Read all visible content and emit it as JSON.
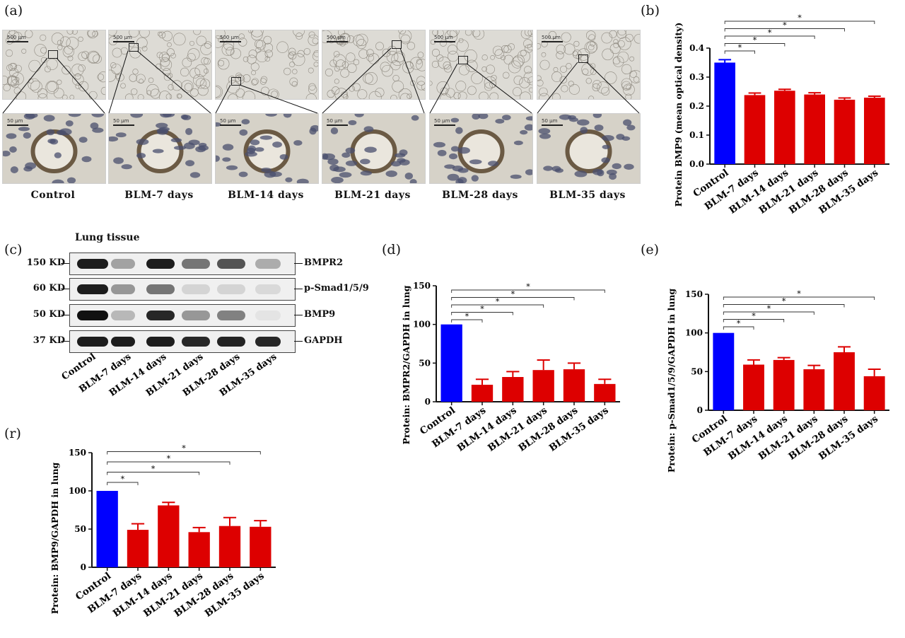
{
  "panel_a": {
    "label": "(a)",
    "scale_top": "500 μm",
    "scale_bottom": "50 μm",
    "groups": [
      "Control",
      "BLM-7 days",
      "BLM-14 days",
      "BLM-21 days",
      "BLM-28 days",
      "BLM-35 days"
    ]
  },
  "panel_c": {
    "label": "(c)",
    "tissue_title": "Lung tissue",
    "rows": [
      {
        "kd": "150 KD",
        "name": "BMPR2",
        "intensity": [
          0.95,
          0.35,
          0.95,
          0.55,
          0.7,
          0.3
        ]
      },
      {
        "kd": "60 KD",
        "name": "p-Smad1/5/9",
        "intensity": [
          0.95,
          0.4,
          0.55,
          0.12,
          0.12,
          0.1
        ]
      },
      {
        "kd": "50 KD",
        "name": "BMP9",
        "intensity": [
          1.0,
          0.25,
          0.9,
          0.4,
          0.5,
          0.05
        ]
      },
      {
        "kd": "37 KD",
        "name": "GAPDH",
        "intensity": [
          0.95,
          0.95,
          0.95,
          0.9,
          0.92,
          0.9
        ]
      }
    ],
    "categories": [
      "Control",
      "BLM-7 days",
      "BLM-14 days",
      "BLM-21 days",
      "BLM-28 days",
      "BLM-35 days"
    ]
  },
  "chart_data": [
    {
      "id": "b",
      "label": "(b)",
      "type": "bar",
      "categories": [
        "Control",
        "BLM-7 days",
        "BLM-14 days",
        "BLM-21 days",
        "BLM-28 days",
        "BLM-35 days"
      ],
      "values": [
        0.35,
        0.238,
        0.253,
        0.24,
        0.222,
        0.229
      ],
      "errors": [
        0.01,
        0.007,
        0.005,
        0.006,
        0.006,
        0.005
      ],
      "ylabel": "Protein BMP9 (mean optical density)",
      "ylim": [
        0,
        0.4
      ],
      "yticks": [
        0.0,
        0.1,
        0.2,
        0.3,
        0.4
      ],
      "ytick_labels": [
        "0.0",
        "0.1",
        "0.2",
        "0.3",
        "0.4"
      ],
      "colors": [
        "#0000ff",
        "#dd0000",
        "#dd0000",
        "#dd0000",
        "#dd0000",
        "#dd0000"
      ],
      "significance": [
        [
          0,
          1
        ],
        [
          0,
          2
        ],
        [
          0,
          3
        ],
        [
          0,
          4
        ],
        [
          0,
          5
        ]
      ],
      "sig_symbol": "*"
    },
    {
      "id": "d",
      "label": "(d)",
      "type": "bar",
      "categories": [
        "Control",
        "BLM-7 days",
        "BLM-14 days",
        "BLM-21 days",
        "BLM-28 days",
        "BLM-35 days"
      ],
      "values": [
        100,
        22,
        32,
        41,
        42,
        23
      ],
      "errors": [
        0,
        7,
        7,
        13,
        8,
        6
      ],
      "ylabel": "Protein: BMPR2/GAPDH in lung",
      "ylim": [
        0,
        150
      ],
      "yticks": [
        0,
        50,
        100,
        150
      ],
      "ytick_labels": [
        "0",
        "50",
        "100",
        "150"
      ],
      "colors": [
        "#0000ff",
        "#dd0000",
        "#dd0000",
        "#dd0000",
        "#dd0000",
        "#dd0000"
      ],
      "significance": [
        [
          0,
          1
        ],
        [
          0,
          2
        ],
        [
          0,
          3
        ],
        [
          0,
          4
        ],
        [
          0,
          5
        ]
      ],
      "sig_symbol": "*"
    },
    {
      "id": "e",
      "label": "(e)",
      "type": "bar",
      "categories": [
        "Control",
        "BLM-7 days",
        "BLM-14 days",
        "BLM-21 days",
        "BLM-28 days",
        "BLM-35 days"
      ],
      "values": [
        100,
        59,
        65,
        53,
        75,
        44
      ],
      "errors": [
        0,
        6,
        3,
        5,
        7,
        9
      ],
      "ylabel": "Protein:  p-Smad1/5/9/GAPDH in lung",
      "ylim": [
        0,
        150
      ],
      "yticks": [
        0,
        50,
        100,
        150
      ],
      "ytick_labels": [
        "0",
        "50",
        "100",
        "150"
      ],
      "colors": [
        "#0000ff",
        "#dd0000",
        "#dd0000",
        "#dd0000",
        "#dd0000",
        "#dd0000"
      ],
      "significance": [
        [
          0,
          1
        ],
        [
          0,
          2
        ],
        [
          0,
          3
        ],
        [
          0,
          4
        ],
        [
          0,
          5
        ]
      ],
      "sig_symbol": "*"
    },
    {
      "id": "r",
      "label": "(r)",
      "type": "bar",
      "categories": [
        "Control",
        "BLM-7 days",
        "BLM-14 days",
        "BLM-21 days",
        "BLM-28 days",
        "BLM-35 days"
      ],
      "values": [
        100,
        49,
        81,
        46,
        54,
        53
      ],
      "errors": [
        0,
        8,
        4,
        6,
        11,
        8
      ],
      "ylabel": "Protein: BMP9/GAPDH in lung",
      "ylim": [
        0,
        150
      ],
      "yticks": [
        0,
        50,
        100,
        150
      ],
      "ytick_labels": [
        "0",
        "50",
        "100",
        "150"
      ],
      "colors": [
        "#0000ff",
        "#dd0000",
        "#dd0000",
        "#dd0000",
        "#dd0000",
        "#dd0000"
      ],
      "significance": [
        [
          0,
          1
        ],
        [
          0,
          3
        ],
        [
          0,
          4
        ],
        [
          0,
          5
        ]
      ],
      "sig_symbol": "*"
    }
  ]
}
